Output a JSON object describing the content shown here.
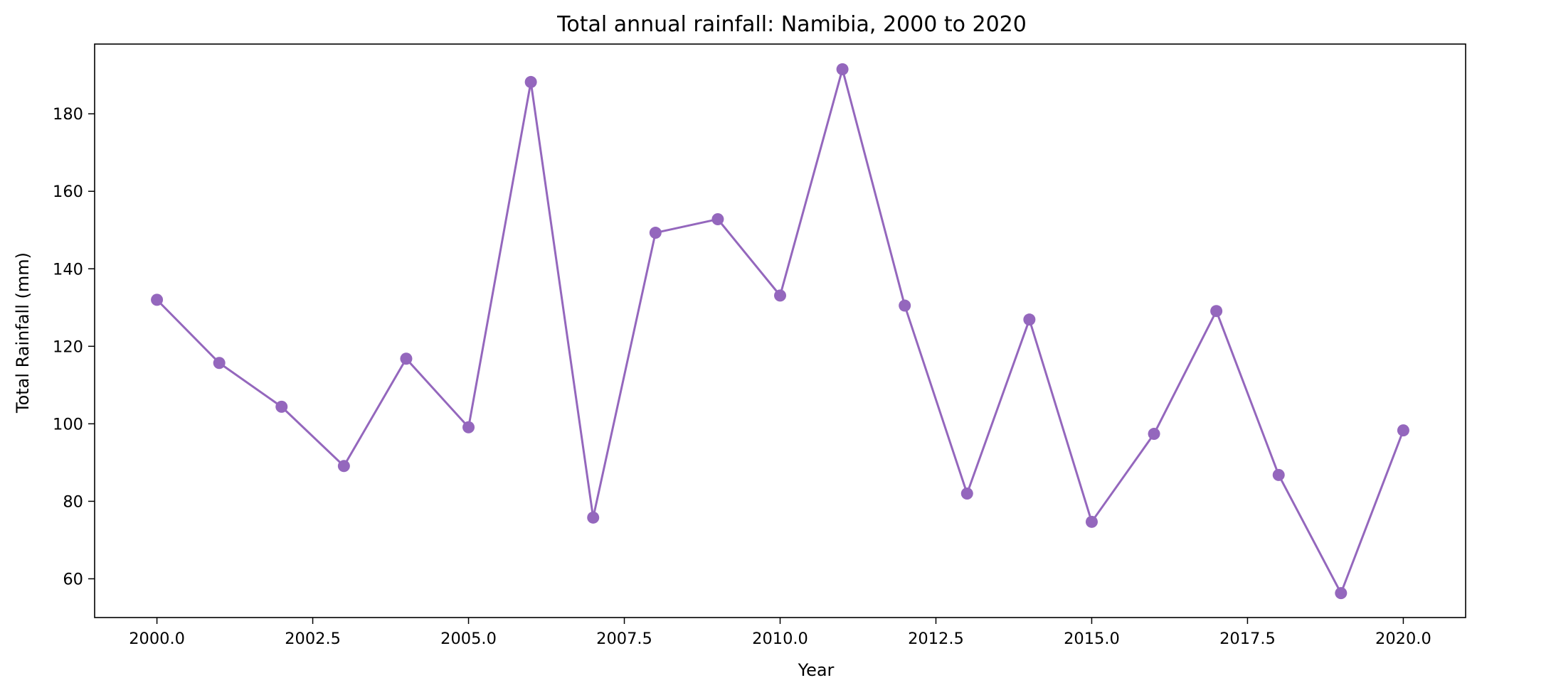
{
  "chart_data": {
    "type": "line",
    "title": "Total annual rainfall: Namibia, 2000 to 2020",
    "xlabel": "Year",
    "ylabel": "Total Rainfall (mm)",
    "xlim": [
      1999.0,
      2021.0
    ],
    "ylim": [
      50,
      198
    ],
    "x_ticks": [
      2000.0,
      2002.5,
      2005.0,
      2007.5,
      2010.0,
      2012.5,
      2015.0,
      2017.5,
      2020.0
    ],
    "x_tick_labels": [
      "2000.0",
      "2002.5",
      "2005.0",
      "2007.5",
      "2010.0",
      "2012.5",
      "2015.0",
      "2017.5",
      "2020.0"
    ],
    "y_ticks": [
      60,
      80,
      100,
      120,
      140,
      160,
      180
    ],
    "y_tick_labels": [
      "60",
      "80",
      "100",
      "120",
      "140",
      "160",
      "180"
    ],
    "grid": false,
    "series": [
      {
        "color": "#9467bd",
        "marker": "circle",
        "x": [
          2000,
          2001,
          2002,
          2003,
          2004,
          2005,
          2006,
          2007,
          2008,
          2009,
          2010,
          2011,
          2012,
          2013,
          2014,
          2015,
          2016,
          2017,
          2018,
          2019,
          2020
        ],
        "values": [
          132.0,
          115.7,
          104.4,
          89.1,
          116.8,
          99.1,
          188.2,
          75.8,
          149.3,
          152.8,
          133.1,
          191.5,
          130.5,
          82.0,
          126.9,
          74.7,
          97.4,
          129.1,
          86.8,
          56.3,
          98.3
        ]
      }
    ]
  }
}
